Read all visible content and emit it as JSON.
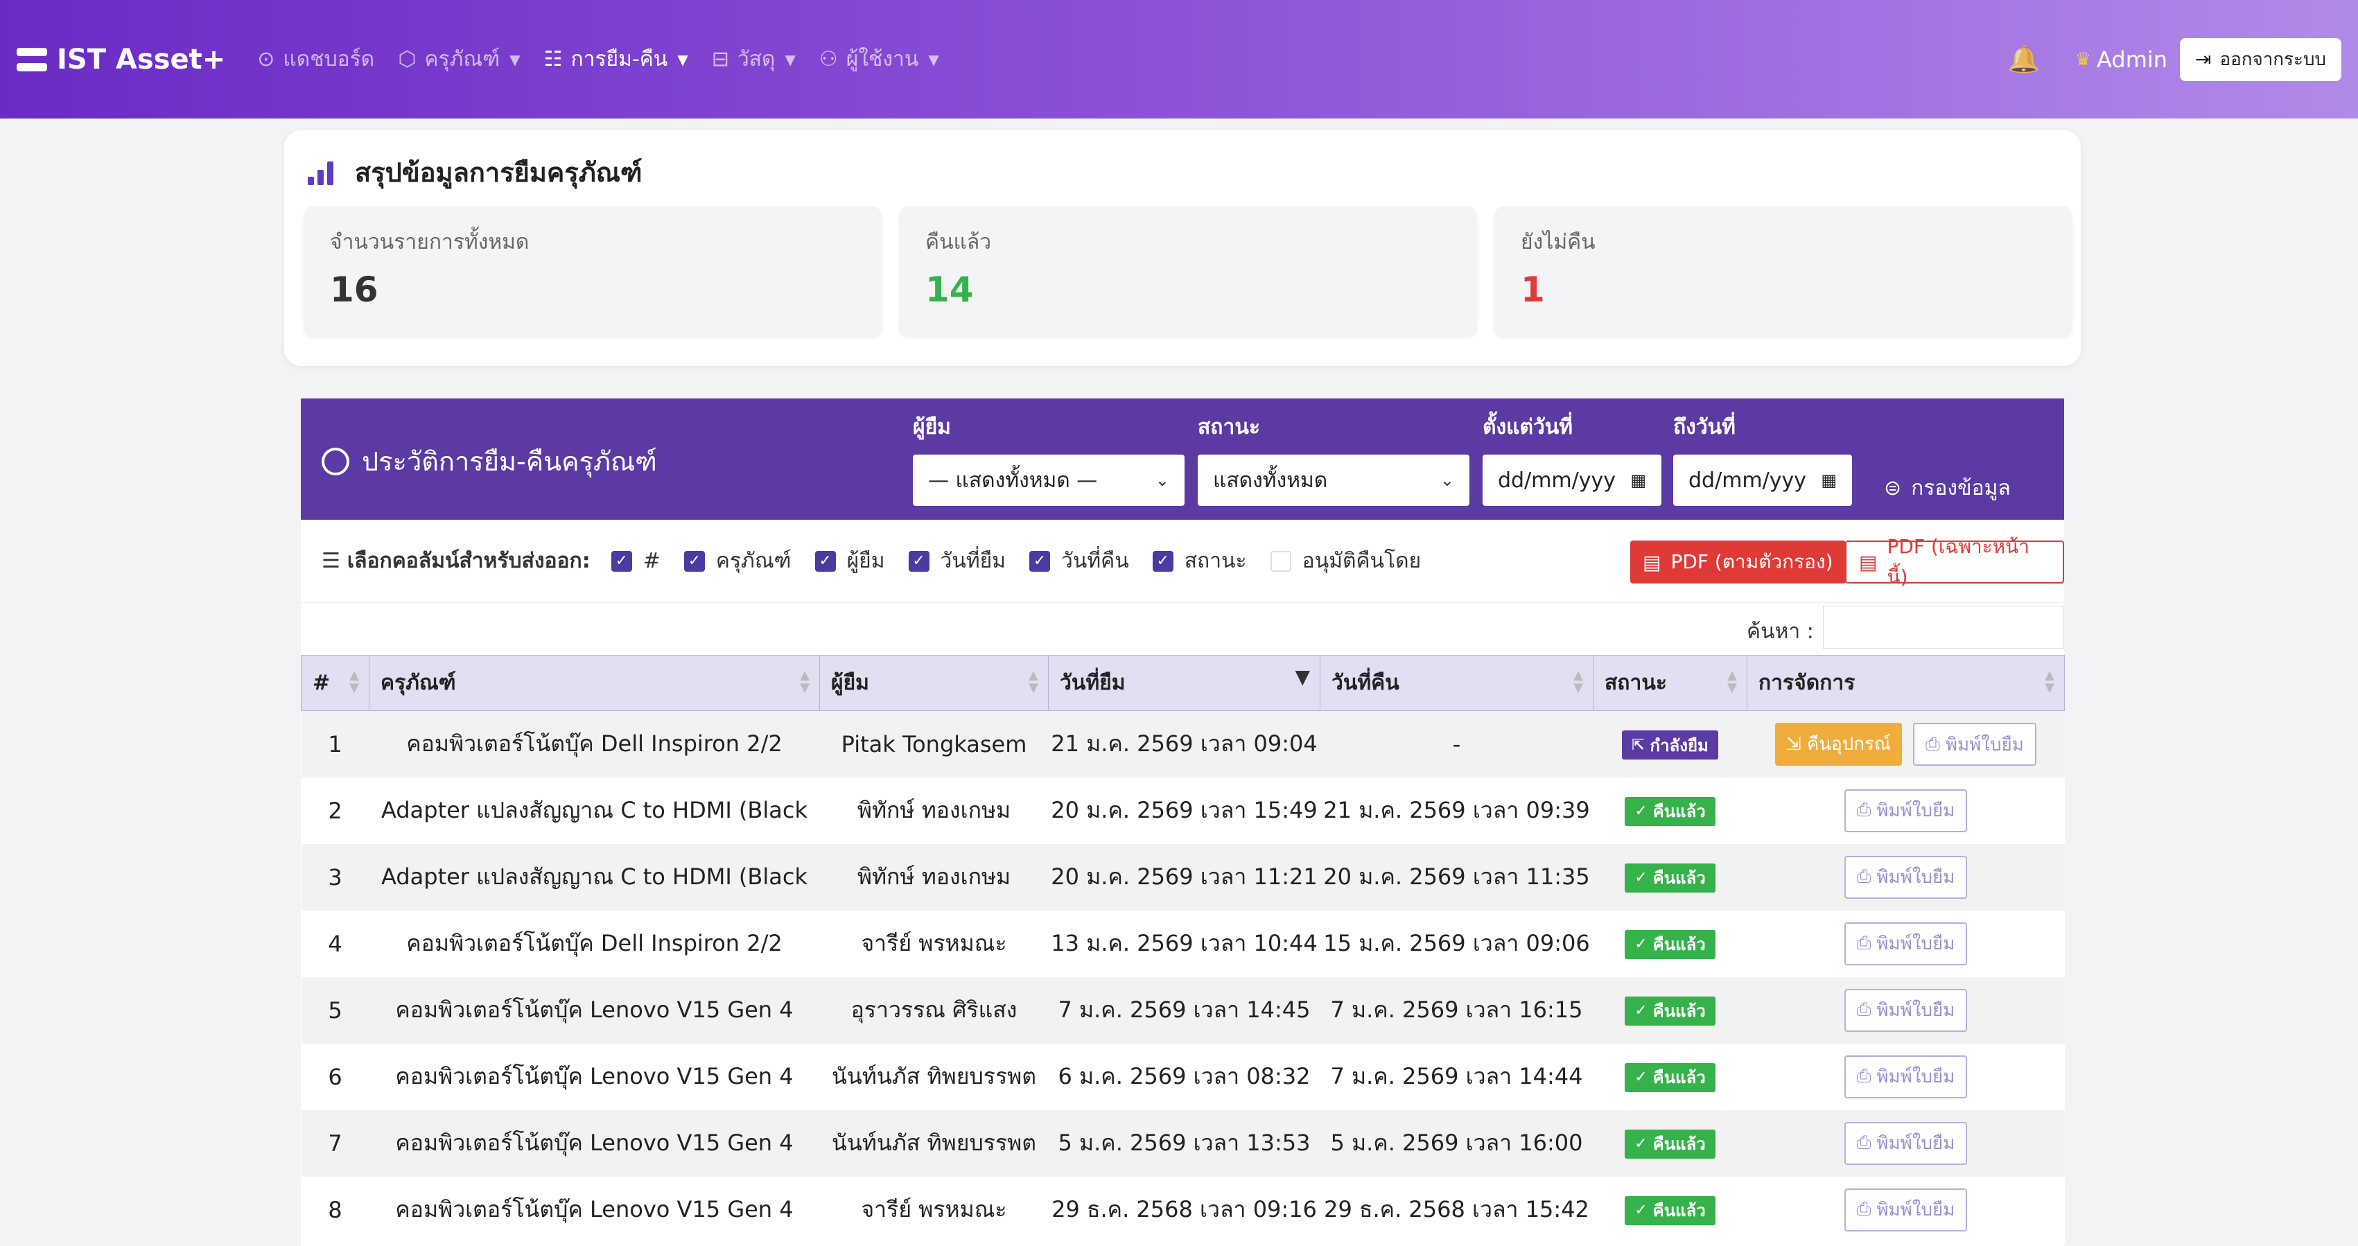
{
  "nav": {
    "brand": "IST Asset+",
    "items": [
      {
        "label": "แดชบอร์ด",
        "icon": "⊙",
        "caret": ""
      },
      {
        "label": "ครุภัณฑ์",
        "icon": "⬡",
        "caret": "▼"
      },
      {
        "label": "การยืม-คืน",
        "icon": "☷",
        "caret": "▼"
      },
      {
        "label": "วัสดุ",
        "icon": "⊟",
        "caret": "▼"
      },
      {
        "label": "ผู้ใช้งาน",
        "icon": "⚇",
        "caret": "▼"
      }
    ],
    "bell_icon": "🔔",
    "crown_icon": "♛",
    "user": "Admin",
    "logout_icon": "⇥",
    "logout": "ออกจากระบบ"
  },
  "summary": {
    "title": "สรุปข้อมูลการยืมครุภัณฑ์",
    "stats": [
      {
        "label": "จำนวนรายการทั้งหมด",
        "value": "16",
        "color": "#333333"
      },
      {
        "label": "คืนแล้ว",
        "value": "14",
        "color": "#35b24a"
      },
      {
        "label": "ยังไม่คืน",
        "value": "1",
        "color": "#e03a36"
      }
    ]
  },
  "history": {
    "title": "ประวัติการยืม-คืนครุภัณฑ์",
    "filters": {
      "borrower_label": "ผู้ยืม",
      "borrower_value": "— แสดงทั้งหมด —",
      "status_label": "สถานะ",
      "status_value": "แสดงทั้งหมด",
      "from_label": "ตั้งแต่วันที่",
      "from_placeholder": "dd/mm/yyyy",
      "to_label": "ถึงวันที่",
      "to_placeholder": "dd/mm/yyyy",
      "button": "กรองข้อมูล"
    },
    "columns_label": "เลือกคอลัมน์สำหรับส่งออก:",
    "column_toggles": [
      {
        "label": "#",
        "checked": true
      },
      {
        "label": "ครุภัณฑ์",
        "checked": true
      },
      {
        "label": "ผู้ยืม",
        "checked": true
      },
      {
        "label": "วันที่ยืม",
        "checked": true
      },
      {
        "label": "วันที่คืน",
        "checked": true
      },
      {
        "label": "สถานะ",
        "checked": true
      },
      {
        "label": "อนุมัติคืนโดย",
        "checked": false
      }
    ],
    "pdf_filtered": "PDF (ตามตัวกรอง)",
    "pdf_page": "PDF (เฉพาะหน้านี้)",
    "search_label": "ค้นหา :",
    "table": {
      "headers": [
        "#",
        "ครุภัณฑ์",
        "ผู้ยืม",
        "วันที่ยืม",
        "วันที่คืน",
        "สถานะ",
        "การจัดการ"
      ],
      "rows": [
        {
          "no": "1",
          "asset": "คอมพิวเตอร์โน้ตบุ๊ค Dell Inspiron 2/2",
          "borrower": "Pitak Tongkasem",
          "borrow_date": "21 ม.ค. 2569 เวลา 09:04",
          "return_date": "-",
          "status": "กำลังยืม",
          "status_type": "borrow",
          "return_btn": "คืนอุปกรณ์",
          "print_btn": "พิมพ์ใบยืม"
        },
        {
          "no": "2",
          "asset": "Adapter แปลงสัญญาณ C to HDMI (Black",
          "borrower": "พิทักษ์ ทองเกษม",
          "borrow_date": "20 ม.ค. 2569 เวลา 15:49",
          "return_date": "21 ม.ค. 2569 เวลา 09:39",
          "status": "คืนแล้ว",
          "status_type": "ret",
          "return_btn": "",
          "print_btn": "พิมพ์ใบยืม"
        },
        {
          "no": "3",
          "asset": "Adapter แปลงสัญญาณ C to HDMI (Black",
          "borrower": "พิทักษ์ ทองเกษม",
          "borrow_date": "20 ม.ค. 2569 เวลา 11:21",
          "return_date": "20 ม.ค. 2569 เวลา 11:35",
          "status": "คืนแล้ว",
          "status_type": "ret",
          "return_btn": "",
          "print_btn": "พิมพ์ใบยืม"
        },
        {
          "no": "4",
          "asset": "คอมพิวเตอร์โน้ตบุ๊ค Dell Inspiron 2/2",
          "borrower": "จารีย์ พรหมณะ",
          "borrow_date": "13 ม.ค. 2569 เวลา 10:44",
          "return_date": "15 ม.ค. 2569 เวลา 09:06",
          "status": "คืนแล้ว",
          "status_type": "ret",
          "return_btn": "",
          "print_btn": "พิมพ์ใบยืม"
        },
        {
          "no": "5",
          "asset": "คอมพิวเตอร์โน้ตบุ๊ค Lenovo V15 Gen 4",
          "borrower": "อุราวรรณ ศิริแสง",
          "borrow_date": "7 ม.ค. 2569 เวลา 14:45",
          "return_date": "7 ม.ค. 2569 เวลา 16:15",
          "status": "คืนแล้ว",
          "status_type": "ret",
          "return_btn": "",
          "print_btn": "พิมพ์ใบยืม"
        },
        {
          "no": "6",
          "asset": "คอมพิวเตอร์โน้ตบุ๊ค Lenovo V15 Gen 4",
          "borrower": "นันท์นภัส ทิพยบรรพต",
          "borrow_date": "6 ม.ค. 2569 เวลา 08:32",
          "return_date": "7 ม.ค. 2569 เวลา 14:44",
          "status": "คืนแล้ว",
          "status_type": "ret",
          "return_btn": "",
          "print_btn": "พิมพ์ใบยืม"
        },
        {
          "no": "7",
          "asset": "คอมพิวเตอร์โน้ตบุ๊ค Lenovo V15 Gen 4",
          "borrower": "นันท์นภัส ทิพยบรรพต",
          "borrow_date": "5 ม.ค. 2569 เวลา 13:53",
          "return_date": "5 ม.ค. 2569 เวลา 16:00",
          "status": "คืนแล้ว",
          "status_type": "ret",
          "return_btn": "",
          "print_btn": "พิมพ์ใบยืม"
        },
        {
          "no": "8",
          "asset": "คอมพิวเตอร์โน้ตบุ๊ค Lenovo V15 Gen 4",
          "borrower": "จารีย์ พรหมณะ",
          "borrow_date": "29 ธ.ค. 2568 เวลา 09:16",
          "return_date": "29 ธ.ค. 2568 เวลา 15:42",
          "status": "คืนแล้ว",
          "status_type": "ret",
          "return_btn": "",
          "print_btn": "พิมพ์ใบยืม"
        }
      ]
    }
  }
}
